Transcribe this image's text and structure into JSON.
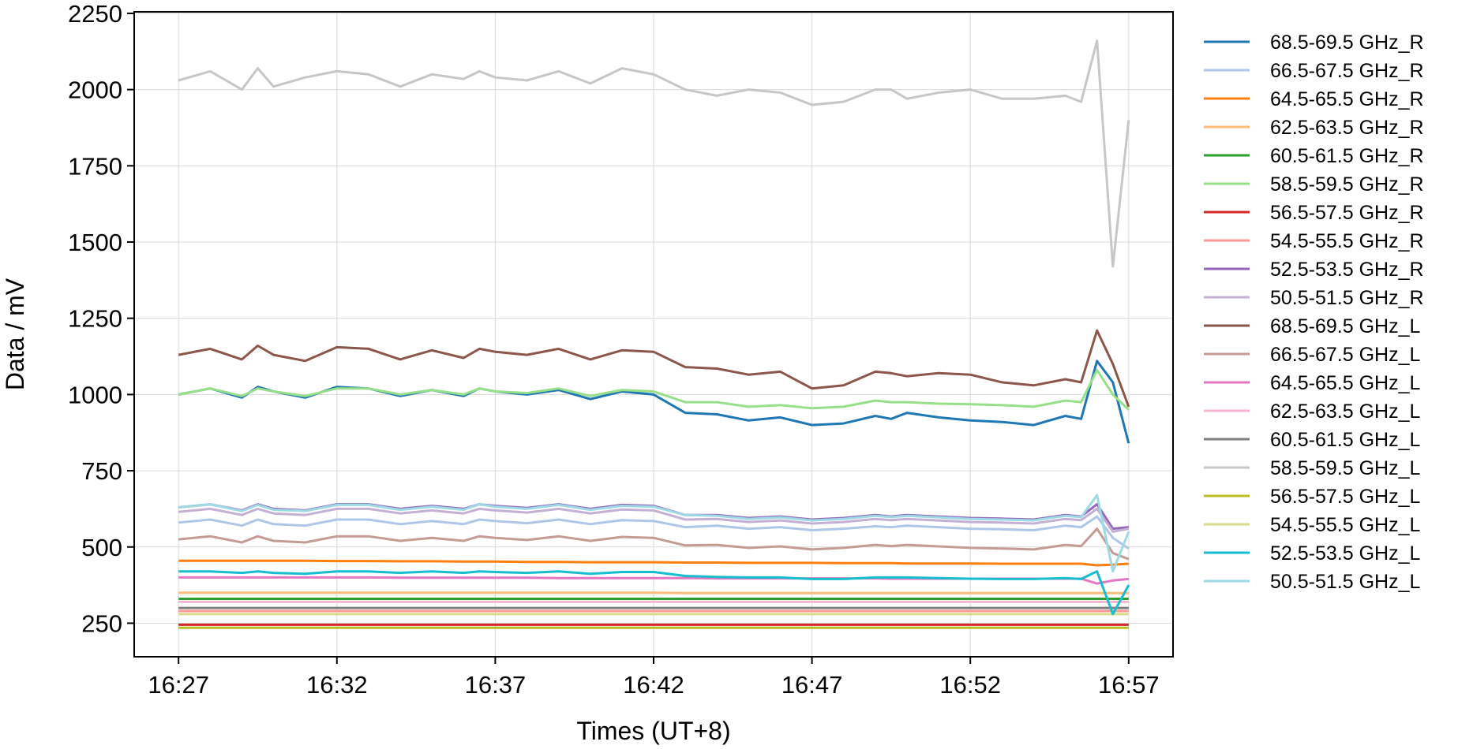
{
  "chart_data": {
    "type": "line",
    "title": "",
    "xlabel": "Times (UT+8)",
    "ylabel": "Data / mV",
    "x_ticks": [
      "16:27",
      "16:32",
      "16:37",
      "16:42",
      "16:47",
      "16:52",
      "16:57"
    ],
    "y_ticks": [
      250,
      500,
      750,
      1000,
      1250,
      1500,
      1750,
      2000,
      2250
    ],
    "xlim": [
      "16:25:36",
      "16:58:24"
    ],
    "ylim": [
      140,
      2255
    ],
    "grid": true,
    "legend": "outside-right",
    "x": [
      "16:27",
      "16:28",
      "16:29",
      "16:29:30",
      "16:30",
      "16:31",
      "16:32",
      "16:33",
      "16:34",
      "16:35",
      "16:36",
      "16:36:30",
      "16:37",
      "16:38",
      "16:39",
      "16:40",
      "16:41",
      "16:42",
      "16:43",
      "16:44",
      "16:45",
      "16:46",
      "16:47",
      "16:48",
      "16:49",
      "16:49:30",
      "16:50",
      "16:51",
      "16:52",
      "16:53",
      "16:54",
      "16:55",
      "16:55:30",
      "16:56",
      "16:56:30",
      "16:57"
    ],
    "series": [
      {
        "name": "68.5-69.5 GHz_R",
        "color": "#1f77b4",
        "values": [
          1000,
          1020,
          990,
          1025,
          1010,
          990,
          1025,
          1020,
          995,
          1015,
          995,
          1020,
          1010,
          1000,
          1015,
          985,
          1010,
          1000,
          940,
          935,
          915,
          925,
          900,
          905,
          930,
          920,
          940,
          925,
          915,
          910,
          900,
          930,
          920,
          1110,
          1040,
          840
        ]
      },
      {
        "name": "66.5-67.5 GHz_R",
        "color": "#aec7e8",
        "values": [
          580,
          590,
          570,
          590,
          575,
          570,
          590,
          590,
          575,
          585,
          575,
          590,
          585,
          578,
          590,
          575,
          588,
          585,
          565,
          570,
          560,
          565,
          555,
          560,
          568,
          565,
          570,
          565,
          560,
          558,
          555,
          570,
          565,
          600,
          530,
          495
        ]
      },
      {
        "name": "64.5-65.5 GHz_R",
        "color": "#ff7f0e",
        "values": [
          455,
          455,
          455,
          455,
          455,
          455,
          454,
          454,
          453,
          453,
          452,
          452,
          452,
          451,
          451,
          450,
          450,
          450,
          449,
          449,
          448,
          448,
          448,
          447,
          447,
          447,
          446,
          446,
          446,
          445,
          445,
          445,
          445,
          440,
          442,
          445
        ]
      },
      {
        "name": "62.5-63.5 GHz_R",
        "color": "#ffbb78",
        "values": [
          350,
          350,
          350,
          350,
          350,
          350,
          350,
          350,
          350,
          350,
          350,
          350,
          350,
          350,
          350,
          350,
          350,
          350,
          349,
          349,
          349,
          349,
          349,
          349,
          349,
          349,
          349,
          349,
          349,
          349,
          349,
          349,
          349,
          349,
          349,
          349
        ]
      },
      {
        "name": "60.5-61.5 GHz_R",
        "color": "#2ca02c",
        "values": [
          330,
          330,
          330,
          330,
          330,
          330,
          330,
          330,
          330,
          330,
          330,
          330,
          330,
          330,
          330,
          330,
          330,
          330,
          330,
          330,
          330,
          330,
          330,
          330,
          330,
          330,
          330,
          330,
          330,
          330,
          330,
          330,
          330,
          330,
          330,
          330
        ]
      },
      {
        "name": "58.5-59.5 GHz_R",
        "color": "#98df8a",
        "values": [
          1000,
          1020,
          995,
          1020,
          1010,
          995,
          1020,
          1020,
          1000,
          1015,
          1000,
          1020,
          1010,
          1005,
          1020,
          995,
          1015,
          1010,
          975,
          975,
          960,
          965,
          955,
          960,
          980,
          975,
          975,
          970,
          968,
          965,
          960,
          980,
          975,
          1080,
          1000,
          950
        ]
      },
      {
        "name": "56.5-57.5 GHz_R",
        "color": "#d62728",
        "values": [
          245,
          245,
          245,
          245,
          245,
          245,
          245,
          245,
          245,
          245,
          245,
          245,
          245,
          245,
          245,
          245,
          245,
          245,
          245,
          245,
          245,
          245,
          245,
          245,
          245,
          245,
          245,
          245,
          245,
          245,
          245,
          245,
          245,
          245,
          245,
          245
        ]
      },
      {
        "name": "54.5-55.5 GHz_R",
        "color": "#ff9896",
        "values": [
          290,
          290,
          290,
          290,
          290,
          290,
          290,
          290,
          290,
          290,
          290,
          290,
          290,
          290,
          290,
          290,
          290,
          290,
          290,
          290,
          290,
          290,
          290,
          290,
          290,
          290,
          290,
          290,
          290,
          290,
          290,
          290,
          290,
          290,
          290,
          290
        ]
      },
      {
        "name": "52.5-53.5 GHz_R",
        "color": "#9467bd",
        "values": [
          630,
          640,
          620,
          640,
          625,
          620,
          640,
          640,
          625,
          635,
          625,
          640,
          635,
          628,
          640,
          625,
          638,
          635,
          605,
          605,
          595,
          600,
          590,
          595,
          605,
          600,
          605,
          600,
          595,
          593,
          590,
          605,
          600,
          640,
          560,
          565
        ]
      },
      {
        "name": "50.5-51.5 GHz_R",
        "color": "#c5b0d5",
        "values": [
          615,
          625,
          605,
          625,
          610,
          605,
          625,
          625,
          610,
          620,
          610,
          625,
          620,
          613,
          625,
          610,
          623,
          620,
          590,
          592,
          582,
          587,
          577,
          582,
          592,
          588,
          592,
          587,
          582,
          580,
          577,
          592,
          588,
          625,
          550,
          560
        ]
      },
      {
        "name": "68.5-69.5 GHz_L",
        "color": "#8c564b",
        "values": [
          1130,
          1150,
          1115,
          1160,
          1130,
          1110,
          1155,
          1150,
          1115,
          1145,
          1120,
          1150,
          1140,
          1130,
          1150,
          1115,
          1145,
          1140,
          1090,
          1085,
          1065,
          1075,
          1020,
          1030,
          1075,
          1070,
          1060,
          1070,
          1065,
          1040,
          1030,
          1050,
          1040,
          1210,
          1100,
          960
        ]
      },
      {
        "name": "66.5-67.5 GHz_L",
        "color": "#c49c94",
        "values": [
          525,
          535,
          515,
          535,
          520,
          515,
          535,
          535,
          520,
          530,
          520,
          535,
          530,
          523,
          535,
          520,
          533,
          530,
          505,
          507,
          497,
          502,
          492,
          497,
          507,
          503,
          507,
          502,
          497,
          495,
          492,
          507,
          503,
          560,
          480,
          460
        ]
      },
      {
        "name": "64.5-65.5 GHz_L",
        "color": "#e377c2",
        "values": [
          400,
          400,
          400,
          400,
          400,
          400,
          400,
          400,
          399,
          399,
          399,
          399,
          399,
          399,
          398,
          398,
          398,
          398,
          398,
          397,
          397,
          397,
          397,
          397,
          397,
          396,
          396,
          396,
          396,
          396,
          396,
          396,
          396,
          380,
          390,
          395
        ]
      },
      {
        "name": "62.5-63.5 GHz_L",
        "color": "#f7b6d2",
        "values": [
          320,
          320,
          320,
          320,
          320,
          320,
          320,
          320,
          320,
          320,
          320,
          320,
          320,
          320,
          320,
          320,
          320,
          320,
          320,
          320,
          320,
          320,
          320,
          320,
          320,
          320,
          320,
          320,
          320,
          320,
          320,
          320,
          320,
          320,
          320,
          320
        ]
      },
      {
        "name": "60.5-61.5 GHz_L",
        "color": "#7f7f7f",
        "values": [
          300,
          300,
          300,
          300,
          300,
          300,
          300,
          300,
          300,
          300,
          300,
          300,
          300,
          300,
          300,
          300,
          300,
          300,
          300,
          300,
          300,
          300,
          300,
          300,
          300,
          300,
          300,
          300,
          300,
          300,
          300,
          300,
          300,
          300,
          300,
          300
        ]
      },
      {
        "name": "58.5-59.5 GHz_L",
        "color": "#c7c7c7",
        "values": [
          2030,
          2060,
          2000,
          2070,
          2010,
          2040,
          2060,
          2050,
          2010,
          2050,
          2035,
          2060,
          2040,
          2030,
          2060,
          2020,
          2070,
          2050,
          2000,
          1980,
          2000,
          1990,
          1950,
          1960,
          2000,
          2000,
          1970,
          1990,
          2000,
          1970,
          1970,
          1980,
          1960,
          2160,
          1420,
          1900
        ]
      },
      {
        "name": "56.5-57.5 GHz_L",
        "color": "#bcbd22",
        "values": [
          235,
          235,
          235,
          235,
          235,
          235,
          235,
          235,
          235,
          235,
          235,
          235,
          235,
          235,
          235,
          235,
          235,
          235,
          235,
          235,
          235,
          235,
          235,
          235,
          235,
          235,
          235,
          235,
          235,
          235,
          235,
          235,
          235,
          235,
          235,
          235
        ]
      },
      {
        "name": "54.5-55.5 GHz_L",
        "color": "#dbdb8d",
        "values": [
          280,
          280,
          280,
          280,
          280,
          280,
          280,
          280,
          280,
          280,
          280,
          280,
          280,
          280,
          280,
          280,
          280,
          280,
          280,
          280,
          280,
          280,
          280,
          280,
          280,
          280,
          280,
          280,
          280,
          280,
          280,
          280,
          280,
          280,
          280,
          280
        ]
      },
      {
        "name": "52.5-53.5 GHz_L",
        "color": "#17becf",
        "values": [
          420,
          420,
          415,
          420,
          415,
          412,
          420,
          420,
          415,
          420,
          415,
          420,
          418,
          415,
          420,
          412,
          418,
          418,
          405,
          402,
          400,
          400,
          395,
          395,
          400,
          400,
          400,
          398,
          396,
          395,
          395,
          398,
          395,
          420,
          280,
          375
        ]
      },
      {
        "name": "50.5-51.5 GHz_L",
        "color": "#9edae5",
        "values": [
          630,
          640,
          618,
          638,
          622,
          618,
          638,
          638,
          622,
          632,
          622,
          640,
          632,
          625,
          638,
          622,
          635,
          632,
          605,
          602,
          592,
          597,
          587,
          592,
          602,
          598,
          602,
          597,
          592,
          590,
          587,
          602,
          598,
          670,
          420,
          550
        ]
      }
    ]
  }
}
